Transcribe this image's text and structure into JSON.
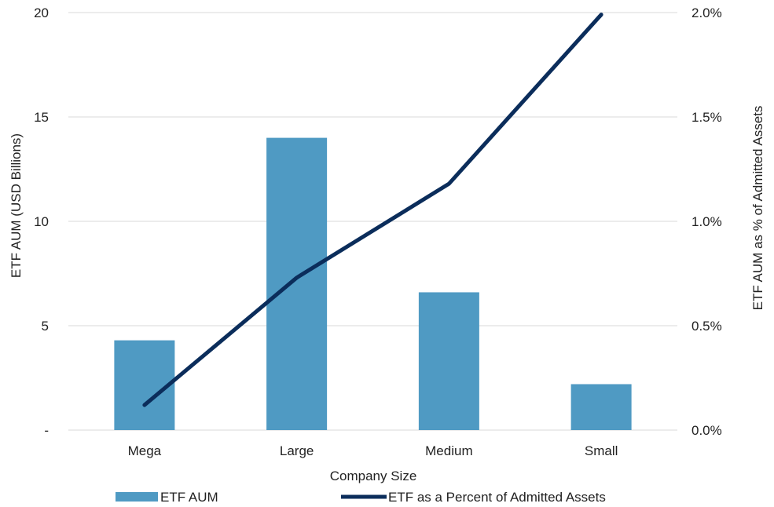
{
  "chart_data": {
    "type": "bar",
    "categories": [
      "Mega",
      "Large",
      "Medium",
      "Small"
    ],
    "series": [
      {
        "name": "ETF AUM",
        "type": "bar",
        "axis": "left",
        "values": [
          4.3,
          14.0,
          6.6,
          2.2
        ],
        "color": "#4f9ac3"
      },
      {
        "name": "ETF as a Percent of Admitted Assets",
        "type": "line",
        "axis": "right",
        "values": [
          0.0012,
          0.0073,
          0.0118,
          0.0199
        ],
        "color": "#0b2d5b"
      }
    ],
    "xlabel": "Company Size",
    "ylabel": "ETF AUM (USD Billions)",
    "y2label": "ETF AUM as % of Admitted Assets",
    "ylim": [
      0,
      20
    ],
    "y2lim": [
      0,
      0.02
    ],
    "yticks": [
      {
        "value": 0,
        "label": "-"
      },
      {
        "value": 5,
        "label": "5"
      },
      {
        "value": 10,
        "label": "10"
      },
      {
        "value": 15,
        "label": "15"
      },
      {
        "value": 20,
        "label": "20"
      }
    ],
    "y2ticks": [
      {
        "value": 0,
        "label": "0.0%"
      },
      {
        "value": 0.005,
        "label": "0.5%"
      },
      {
        "value": 0.01,
        "label": "1.0%"
      },
      {
        "value": 0.015,
        "label": "1.5%"
      },
      {
        "value": 0.02,
        "label": "2.0%"
      }
    ],
    "grid": true,
    "legend_position": "bottom",
    "colors": {
      "grid": "#d9d9d9",
      "bar": "#4f9ac3",
      "line": "#0b2d5b"
    }
  }
}
